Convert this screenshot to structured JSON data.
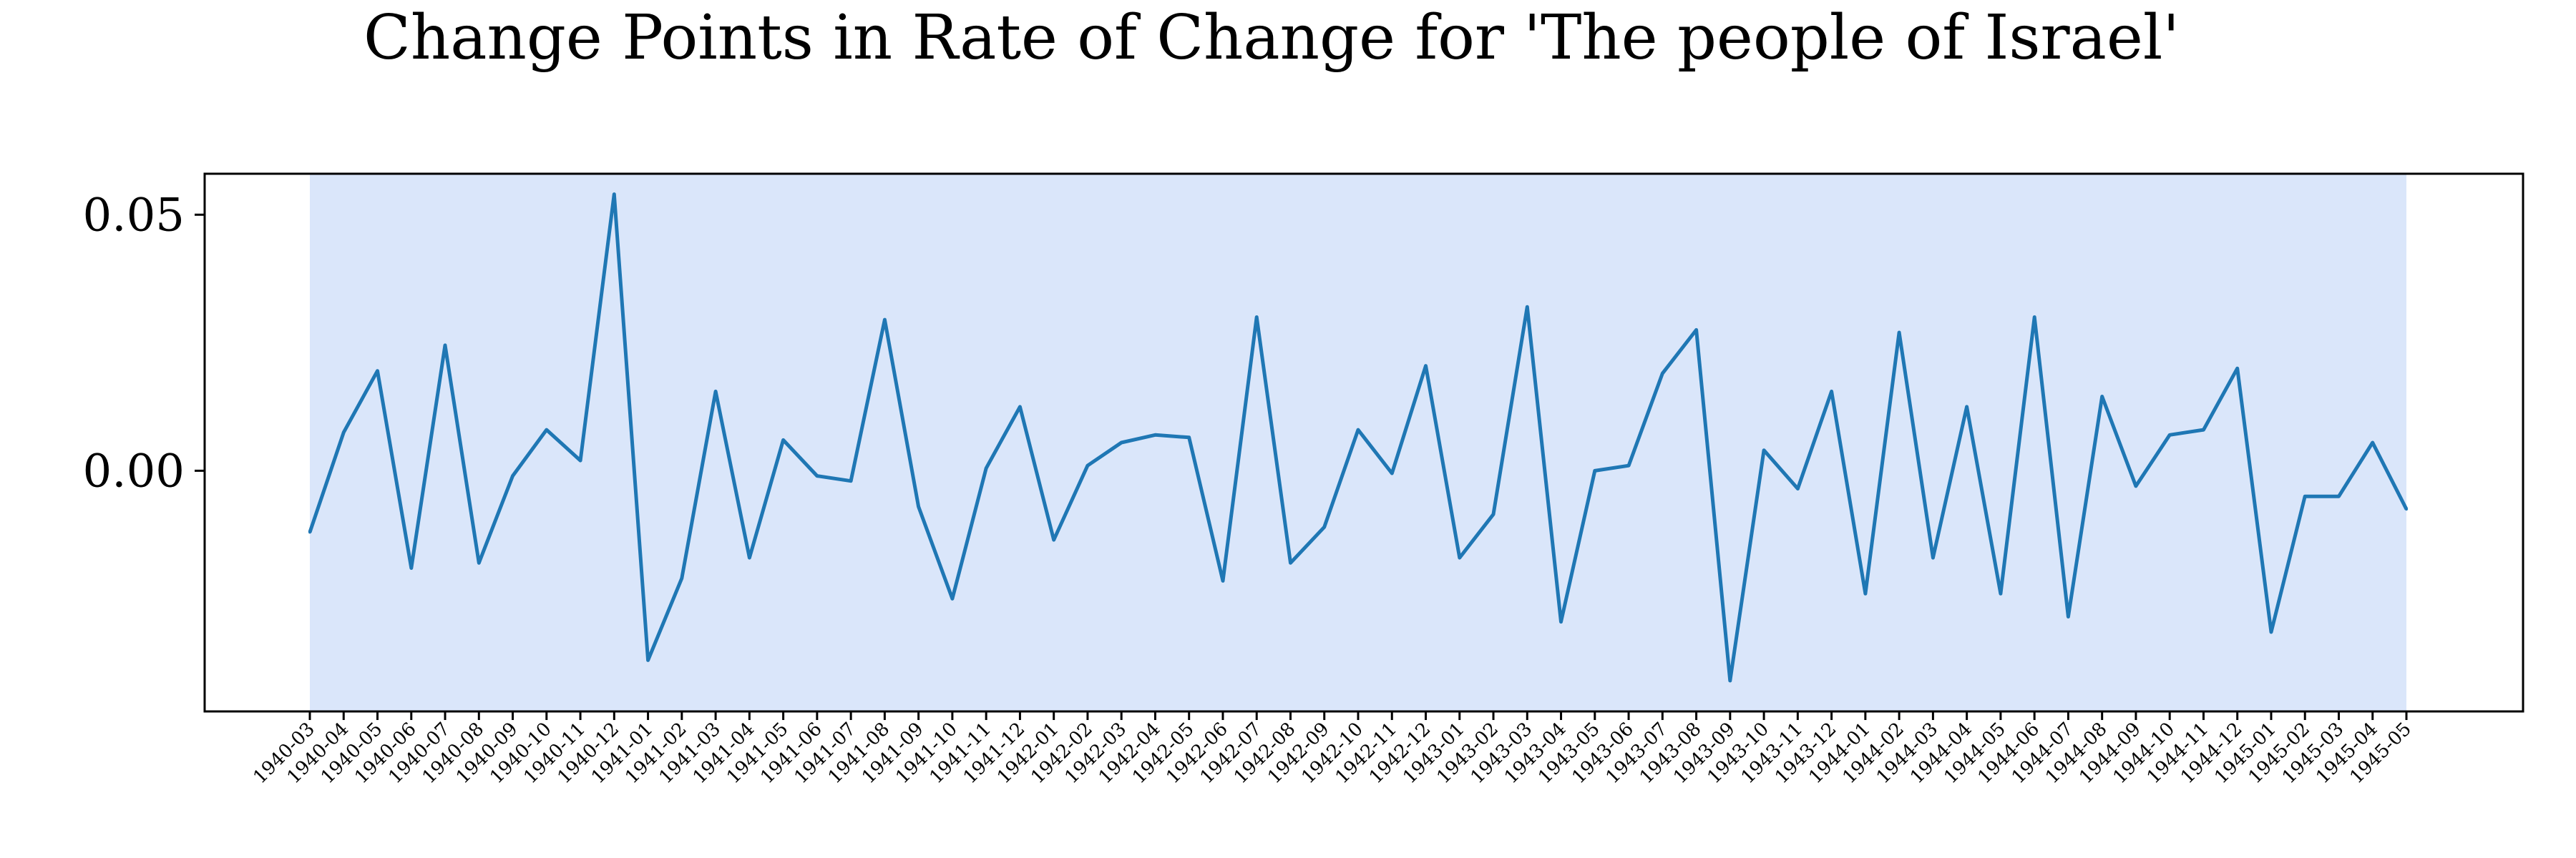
{
  "chart_data": {
    "type": "line",
    "title": "Change Points in Rate of Change for 'The people of Israel'",
    "xlabel": "",
    "ylabel": "",
    "ylim": [
      -0.047,
      0.058
    ],
    "yticks": [
      0.05,
      0.0
    ],
    "ytick_labels": [
      "0.05",
      "0.00"
    ],
    "grid": false,
    "colors": {
      "line": "#1f77b4",
      "span": "#dae6fa"
    },
    "shaded_span": {
      "start": "1940-03",
      "end": "1945-05"
    },
    "x": [
      "1940-03",
      "1940-04",
      "1940-05",
      "1940-06",
      "1940-07",
      "1940-08",
      "1940-09",
      "1940-10",
      "1940-11",
      "1940-12",
      "1941-01",
      "1941-02",
      "1941-03",
      "1941-04",
      "1941-05",
      "1941-06",
      "1941-07",
      "1941-08",
      "1941-09",
      "1941-10",
      "1941-11",
      "1941-12",
      "1942-01",
      "1942-02",
      "1942-03",
      "1942-04",
      "1942-05",
      "1942-06",
      "1942-07",
      "1942-08",
      "1942-09",
      "1942-10",
      "1942-11",
      "1942-12",
      "1943-01",
      "1943-02",
      "1943-03",
      "1943-04",
      "1943-05",
      "1943-06",
      "1943-07",
      "1943-08",
      "1943-09",
      "1943-10",
      "1943-11",
      "1943-12",
      "1944-01",
      "1944-02",
      "1944-03",
      "1944-04",
      "1944-05",
      "1944-06",
      "1944-07",
      "1944-08",
      "1944-09",
      "1944-10",
      "1944-11",
      "1944-12",
      "1945-01",
      "1945-02",
      "1945-03",
      "1945-04",
      "1945-05"
    ],
    "series": [
      {
        "values": [
          -0.012,
          0.0075,
          0.0195,
          -0.019,
          0.0245,
          -0.018,
          -0.001,
          0.008,
          0.002,
          0.054,
          -0.037,
          -0.021,
          0.0155,
          -0.017,
          0.006,
          -0.001,
          -0.002,
          0.0295,
          -0.007,
          -0.025,
          0.0005,
          0.0125,
          -0.0135,
          0.001,
          0.0055,
          0.007,
          0.0065,
          -0.0215,
          0.03,
          -0.018,
          -0.011,
          0.008,
          -0.0005,
          0.0205,
          -0.017,
          -0.0085,
          0.032,
          -0.0295,
          0.0,
          0.001,
          0.019,
          0.0275,
          -0.041,
          0.004,
          -0.0035,
          0.0155,
          -0.024,
          0.027,
          -0.017,
          0.0125,
          -0.024,
          0.03,
          -0.0285,
          0.0145,
          -0.003,
          0.007,
          0.008,
          0.02,
          -0.0315,
          -0.005,
          -0.005,
          0.0055,
          -0.0075
        ]
      }
    ]
  }
}
